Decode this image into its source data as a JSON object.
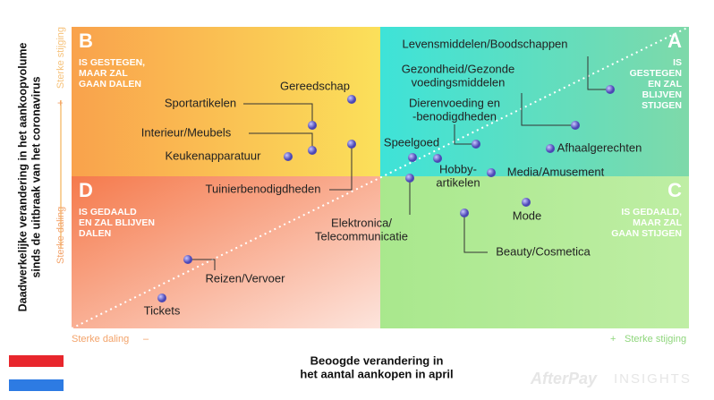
{
  "quadrants": [
    {
      "letter": "B",
      "lines": [
        "IS GESTEGEN,",
        "MAAR ZAL",
        "GAAN DALEN"
      ]
    },
    {
      "letter": "A",
      "lines": [
        "IS",
        "GESTEGEN",
        "EN ZAL",
        "BLIJVEN",
        "STIJGEN"
      ]
    },
    {
      "letter": "D",
      "lines": [
        "IS GEDAALD",
        "EN ZAL BLIJVEN",
        "DALEN"
      ]
    },
    {
      "letter": "C",
      "lines": [
        "IS GEDAALD,",
        "MAAR ZAL",
        "GAAN STIJGEN"
      ]
    }
  ],
  "points": [
    {
      "lines": [
        "Gereedschap"
      ]
    },
    {
      "lines": [
        "Sportartikelen"
      ]
    },
    {
      "lines": [
        "Interieur/Meubels"
      ]
    },
    {
      "lines": [
        "Keukenapparatuur"
      ]
    },
    {
      "lines": [
        "Tuinierbenodigdheden"
      ]
    },
    {
      "lines": [
        "Levensmiddelen/Boodschappen"
      ]
    },
    {
      "lines": [
        "Gezondheid/Gezonde",
        "voedingsmiddelen"
      ]
    },
    {
      "lines": [
        "Dierenvoeding en",
        "-benodigdheden"
      ]
    },
    {
      "lines": [
        "Speelgoed"
      ]
    },
    {
      "lines": [
        "Afhaalgerechten"
      ]
    },
    {
      "lines": [
        "Hobby-",
        "artikelen"
      ]
    },
    {
      "lines": [
        "Media/Amusement"
      ]
    },
    {
      "lines": [
        "Elektronica/",
        "Telecommunicatie"
      ]
    },
    {
      "lines": [
        "Mode"
      ]
    },
    {
      "lines": [
        "Beauty/Cosmetica"
      ]
    },
    {
      "lines": [
        "Reizen/Vervoer"
      ]
    },
    {
      "lines": [
        "Tickets"
      ]
    }
  ],
  "y_axis": {
    "title": [
      "Daadwerkelijke verandering in het aankoopvolume",
      "sinds de uitbraak van het coronavirus"
    ],
    "high": "Sterke stijging",
    "plus": "+",
    "minus": "-",
    "low": "Sterke daling"
  },
  "x_axis": {
    "title": [
      "Beoogde verandering in",
      "het aantal aankopen in april"
    ],
    "low": "Sterke daling",
    "minus": "–",
    "plus": "+",
    "high": "Sterke stijging"
  },
  "logo": {
    "brand": "AfterPay",
    "suffix": "INSIGHTS"
  }
}
